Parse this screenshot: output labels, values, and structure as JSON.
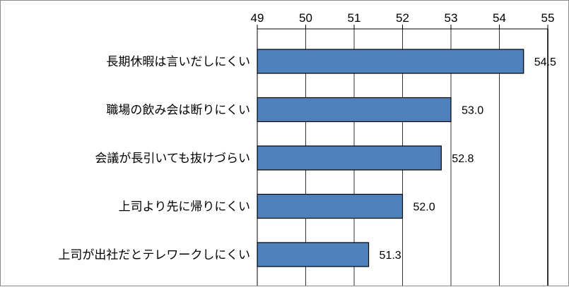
{
  "chart_data": {
    "type": "bar",
    "orientation": "horizontal",
    "categories": [
      "長期休暇は言いだしにくい",
      "職場の飲み会は断りにくい",
      "会議が長引いても抜けづらい",
      "上司より先に帰りにくい",
      "上司が出社だとテレワークしにくい"
    ],
    "values": [
      54.5,
      53.0,
      52.8,
      52.0,
      51.3
    ],
    "value_labels": [
      "54.5",
      "53.0",
      "52.8",
      "52.0",
      "51.3"
    ],
    "x_ticks": [
      "49",
      "50",
      "51",
      "52",
      "53",
      "54",
      "55"
    ],
    "xlim": [
      49,
      55
    ],
    "x_axis_position": "top",
    "grid": true,
    "colors": {
      "bar_fill": "#4f81bd",
      "bar_stroke": "#000000",
      "grid": "#000000"
    }
  }
}
